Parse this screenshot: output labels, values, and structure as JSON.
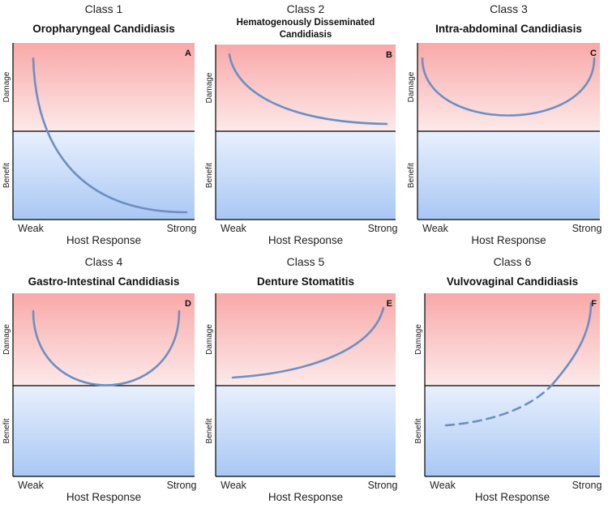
{
  "colors": {
    "damage_top": "#f9a8a8",
    "damage_bottom": "#fde9e9",
    "benefit_top": "#e8f0fd",
    "benefit_bottom": "#a9c7f4",
    "curve": "#6b8fc4",
    "axis": "#000000"
  },
  "axis": {
    "y_upper": "Damage",
    "y_lower": "Benefit",
    "x_left": "Weak",
    "x_right": "Strong",
    "x_label": "Host Response"
  },
  "panels": [
    {
      "class_label": "Class 1",
      "title": [
        "Oropharyngeal  Candidiasis"
      ],
      "letter": "A",
      "curve": "decreasing from high damage to strong benefit"
    },
    {
      "class_label": "Class 2",
      "title": [
        "Hematogenously Disseminated",
        "Candidiasis"
      ],
      "letter": "B",
      "curve": "decreasing, remains in damage"
    },
    {
      "class_label": "Class 3",
      "title": [
        "Intra-abdominal Candidiasis"
      ],
      "letter": "C",
      "curve": "U-shaped, remains in damage"
    },
    {
      "class_label": "Class 4",
      "title": [
        "Gastro-Intestinal Candidiasis"
      ],
      "letter": "D",
      "curve": "U-shaped, touching baseline"
    },
    {
      "class_label": "Class 5",
      "title": [
        "Denture Stomatitis"
      ],
      "letter": "E",
      "curve": "increasing, remains in damage"
    },
    {
      "class_label": "Class 6",
      "title": [
        "Vulvovaginal Candidiasis"
      ],
      "letter": "F",
      "curve": "increasing from benefit (dashed) to damage (solid)"
    }
  ]
}
